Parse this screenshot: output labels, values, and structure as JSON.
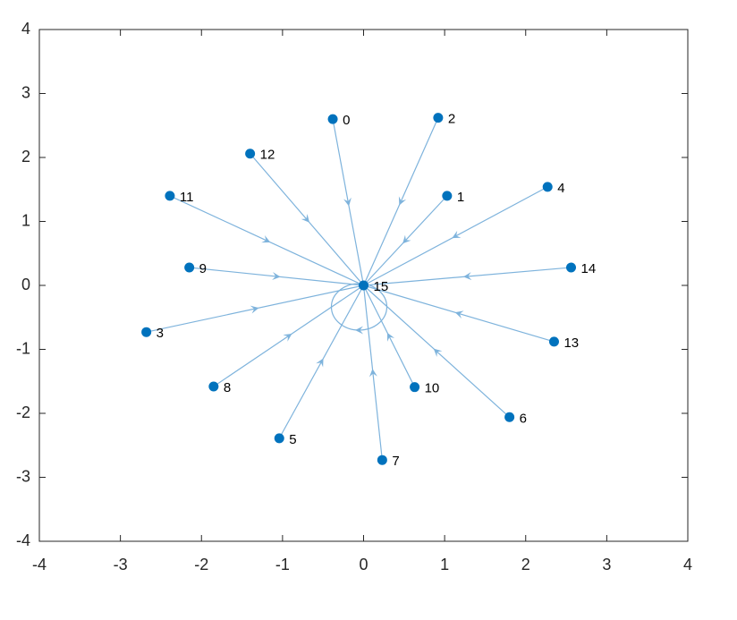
{
  "chart_data": {
    "type": "graph",
    "nodes": [
      {
        "label": "0",
        "x": -0.38,
        "y": 2.6
      },
      {
        "label": "1",
        "x": 1.03,
        "y": 1.4
      },
      {
        "label": "2",
        "x": 0.92,
        "y": 2.62
      },
      {
        "label": "3",
        "x": -2.68,
        "y": -0.73
      },
      {
        "label": "4",
        "x": 2.27,
        "y": 1.54
      },
      {
        "label": "5",
        "x": -1.04,
        "y": -2.39
      },
      {
        "label": "6",
        "x": 1.8,
        "y": -2.06
      },
      {
        "label": "7",
        "x": 0.23,
        "y": -2.73
      },
      {
        "label": "8",
        "x": -1.85,
        "y": -1.58
      },
      {
        "label": "9",
        "x": -2.15,
        "y": 0.28
      },
      {
        "label": "10",
        "x": 0.63,
        "y": -1.59
      },
      {
        "label": "11",
        "x": -2.39,
        "y": 1.4
      },
      {
        "label": "12",
        "x": -1.4,
        "y": 2.06
      },
      {
        "label": "13",
        "x": 2.35,
        "y": -0.88
      },
      {
        "label": "14",
        "x": 2.56,
        "y": 0.28
      },
      {
        "label": "15",
        "x": 0,
        "y": 0
      }
    ],
    "edges": [
      [
        0,
        15
      ],
      [
        1,
        15
      ],
      [
        2,
        15
      ],
      [
        3,
        15
      ],
      [
        4,
        15
      ],
      [
        5,
        15
      ],
      [
        6,
        15
      ],
      [
        7,
        15
      ],
      [
        8,
        15
      ],
      [
        9,
        15
      ],
      [
        10,
        15
      ],
      [
        11,
        15
      ],
      [
        12,
        15
      ],
      [
        13,
        15
      ],
      [
        14,
        15
      ],
      [
        15,
        15
      ]
    ],
    "xlim": [
      -4,
      4
    ],
    "ylim": [
      -4,
      4
    ],
    "xticks": [
      -4,
      -3,
      -2,
      -1,
      0,
      1,
      2,
      3,
      4
    ],
    "yticks": [
      -4,
      -3,
      -2,
      -1,
      0,
      1,
      2,
      3,
      4
    ],
    "node_color": "#0072bd",
    "edge_color": "#7eb3dc"
  }
}
